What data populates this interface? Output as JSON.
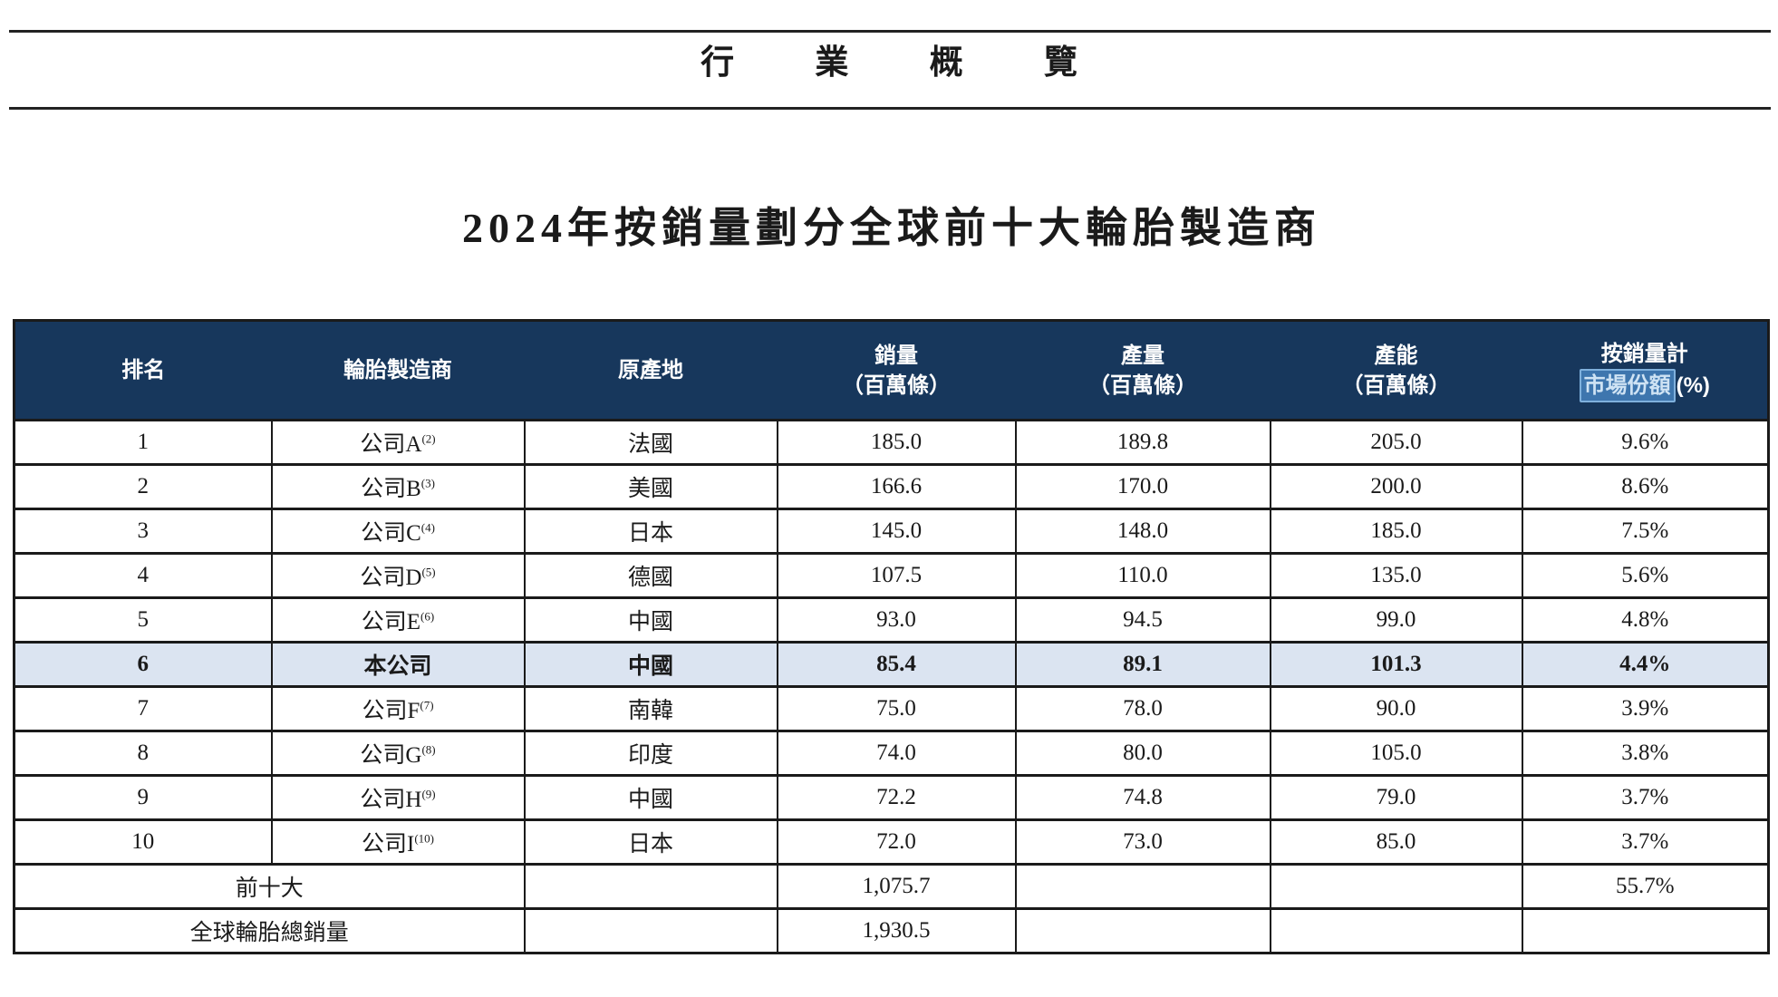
{
  "page": {
    "header_title": "行 業 概 覽",
    "table_title": "2024年按銷量劃分全球前十大輪胎製造商"
  },
  "colors": {
    "header_bg": "#17375C",
    "header_text": "#FFFFFF",
    "self_row_bg": "#DBE4F1",
    "selection_bg": "#3E76AE",
    "selection_border": "#7FB0DC",
    "selection_text": "#CFE3F4",
    "border": "#1A1A1A",
    "text": "#1A1A1A"
  },
  "table": {
    "columns": [
      {
        "label": "排名"
      },
      {
        "label": "輪胎製造商"
      },
      {
        "label": "原產地"
      },
      {
        "line1": "銷量",
        "line2": "（百萬條）"
      },
      {
        "line1": "產量",
        "line2": "（百萬條）"
      },
      {
        "line1": "產能",
        "line2": "（百萬條）"
      },
      {
        "line1": "按銷量計",
        "line2_highlight": "市場份額",
        "line2_rest": "(%)"
      }
    ],
    "rows": [
      {
        "rank": "1",
        "company": "公司A",
        "footnote": "(2)",
        "origin": "法國",
        "sales": "185.0",
        "production": "189.8",
        "capacity": "205.0",
        "share": "9.6%",
        "highlight": false
      },
      {
        "rank": "2",
        "company": "公司B",
        "footnote": "(3)",
        "origin": "美國",
        "sales": "166.6",
        "production": "170.0",
        "capacity": "200.0",
        "share": "8.6%",
        "highlight": false
      },
      {
        "rank": "3",
        "company": "公司C",
        "footnote": "(4)",
        "origin": "日本",
        "sales": "145.0",
        "production": "148.0",
        "capacity": "185.0",
        "share": "7.5%",
        "highlight": false
      },
      {
        "rank": "4",
        "company": "公司D",
        "footnote": "(5)",
        "origin": "德國",
        "sales": "107.5",
        "production": "110.0",
        "capacity": "135.0",
        "share": "5.6%",
        "highlight": false
      },
      {
        "rank": "5",
        "company": "公司E",
        "footnote": "(6)",
        "origin": "中國",
        "sales": "93.0",
        "production": "94.5",
        "capacity": "99.0",
        "share": "4.8%",
        "highlight": false
      },
      {
        "rank": "6",
        "company": "本公司",
        "footnote": "",
        "origin": "中國",
        "sales": "85.4",
        "production": "89.1",
        "capacity": "101.3",
        "share": "4.4%",
        "highlight": true
      },
      {
        "rank": "7",
        "company": "公司F",
        "footnote": "(7)",
        "origin": "南韓",
        "sales": "75.0",
        "production": "78.0",
        "capacity": "90.0",
        "share": "3.9%",
        "highlight": false
      },
      {
        "rank": "8",
        "company": "公司G",
        "footnote": "(8)",
        "origin": "印度",
        "sales": "74.0",
        "production": "80.0",
        "capacity": "105.0",
        "share": "3.8%",
        "highlight": false
      },
      {
        "rank": "9",
        "company": "公司H",
        "footnote": "(9)",
        "origin": "中國",
        "sales": "72.2",
        "production": "74.8",
        "capacity": "79.0",
        "share": "3.7%",
        "highlight": false
      },
      {
        "rank": "10",
        "company": "公司I",
        "footnote": "(10)",
        "origin": "日本",
        "sales": "72.0",
        "production": "73.0",
        "capacity": "85.0",
        "share": "3.7%",
        "highlight": false
      }
    ],
    "summary_rows": [
      {
        "label": "前十大",
        "origin": "",
        "sales": "1,075.7",
        "production": "",
        "capacity": "",
        "share": "55.7%"
      },
      {
        "label": "全球輪胎總銷量",
        "origin": "",
        "sales": "1,930.5",
        "production": "",
        "capacity": "",
        "share": ""
      }
    ]
  }
}
